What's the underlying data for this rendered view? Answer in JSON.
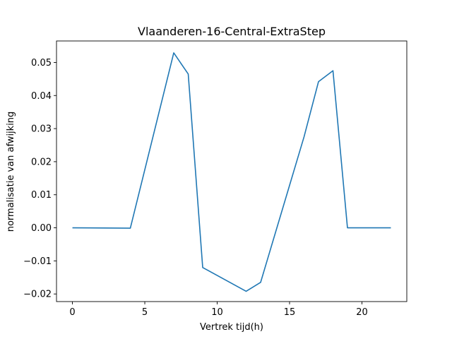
{
  "chart_data": {
    "type": "line",
    "title": "Vlaanderen-16-Central-ExtraStep",
    "xlabel": "Vertrek tijd(h)",
    "ylabel": "normalisatie van afwijking",
    "xlim": [
      -1.1,
      23.1
    ],
    "ylim": [
      -0.0223,
      0.0565
    ],
    "xticks": [
      0,
      5,
      10,
      15,
      20
    ],
    "yticks": [
      -0.02,
      -0.01,
      0.0,
      0.01,
      0.02,
      0.03,
      0.04,
      0.05
    ],
    "ytick_labels": [
      "−0.02",
      "−0.01",
      "0.00",
      "0.01",
      "0.02",
      "0.03",
      "0.04",
      "0.05"
    ],
    "grid": false,
    "series": [
      {
        "color": "#1f77b4",
        "x": [
          0,
          4,
          7,
          8,
          9,
          12,
          13,
          16,
          17,
          18,
          19,
          22
        ],
        "y": [
          0.0,
          -0.0001,
          0.0529,
          0.0465,
          -0.012,
          -0.0192,
          -0.0165,
          0.0275,
          0.0442,
          0.0475,
          0.0,
          0.0
        ]
      }
    ]
  }
}
